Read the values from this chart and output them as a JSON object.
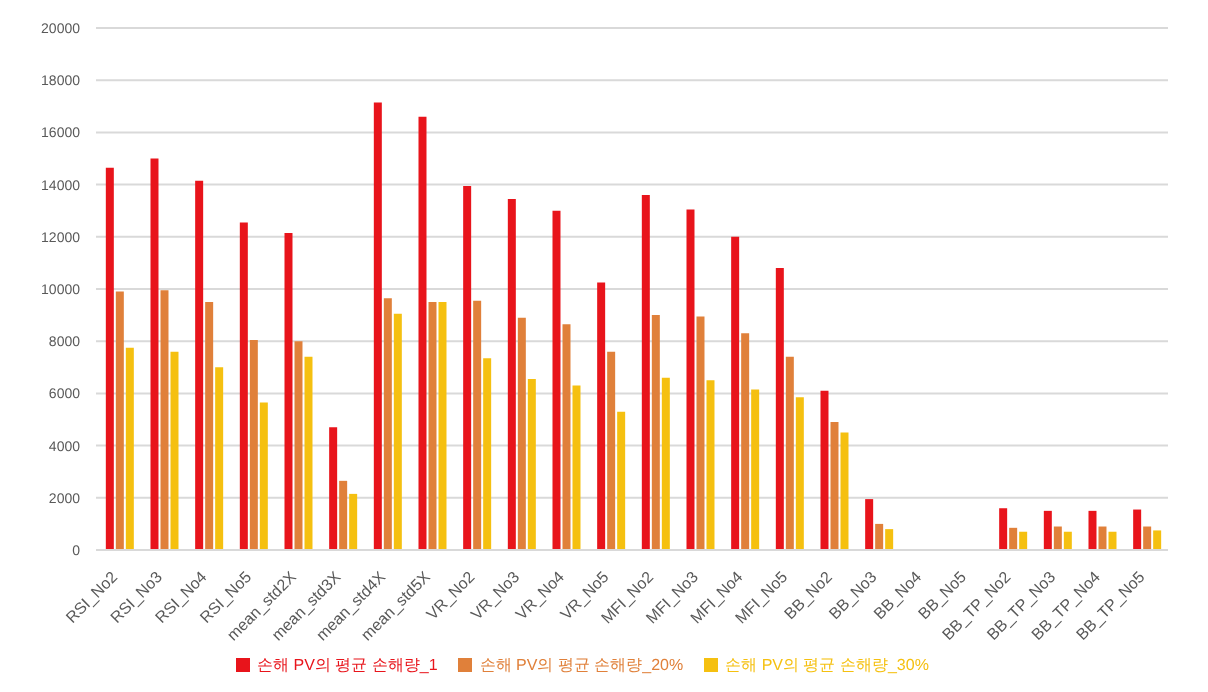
{
  "chart_data": {
    "type": "bar",
    "categories": [
      "RSI_No2",
      "RSI_No3",
      "RSI_No4",
      "RSI_No5",
      "mean_std2X",
      "mean_std3X",
      "mean_std4X",
      "mean_std5X",
      "VR_No2",
      "VR_No3",
      "VR_No4",
      "VR_No5",
      "MFI_No2",
      "MFI_No3",
      "MFI_No4",
      "MFI_No5",
      "BB_No2",
      "BB_No3",
      "BB_No4",
      "BB_No5",
      "BB_TP_No2",
      "BB_TP_No3",
      "BB_TP_No4",
      "BB_TP_No5"
    ],
    "series": [
      {
        "name": "손해 PV의 평균 손해량_1",
        "color": "#e8141b",
        "values": [
          14650,
          15000,
          14150,
          12550,
          12150,
          4700,
          17150,
          16600,
          13950,
          13450,
          13000,
          10250,
          13600,
          13050,
          12000,
          10800,
          6100,
          1950,
          null,
          null,
          1600,
          1500,
          1500,
          1550
        ]
      },
      {
        "name": "손해 PV의 평균 손해량_20%",
        "color": "#e0803a",
        "values": [
          9900,
          9950,
          9500,
          8050,
          8000,
          2650,
          9650,
          9500,
          9550,
          8900,
          8650,
          7600,
          9000,
          8950,
          8300,
          7400,
          4900,
          1000,
          null,
          null,
          850,
          900,
          900,
          900
        ]
      },
      {
        "name": "손해 PV의 평균 손해량_30%",
        "color": "#f5c010",
        "values": [
          7750,
          7600,
          7000,
          5650,
          7400,
          2150,
          9050,
          9500,
          7350,
          6550,
          6300,
          5300,
          6600,
          6500,
          6150,
          5850,
          4500,
          800,
          null,
          null,
          700,
          700,
          700,
          750
        ]
      }
    ],
    "ylim": [
      0,
      20000
    ],
    "yticks": [
      0,
      2000,
      4000,
      6000,
      8000,
      10000,
      12000,
      14000,
      16000,
      18000,
      20000
    ],
    "grid": "y",
    "legend": "bottom"
  }
}
